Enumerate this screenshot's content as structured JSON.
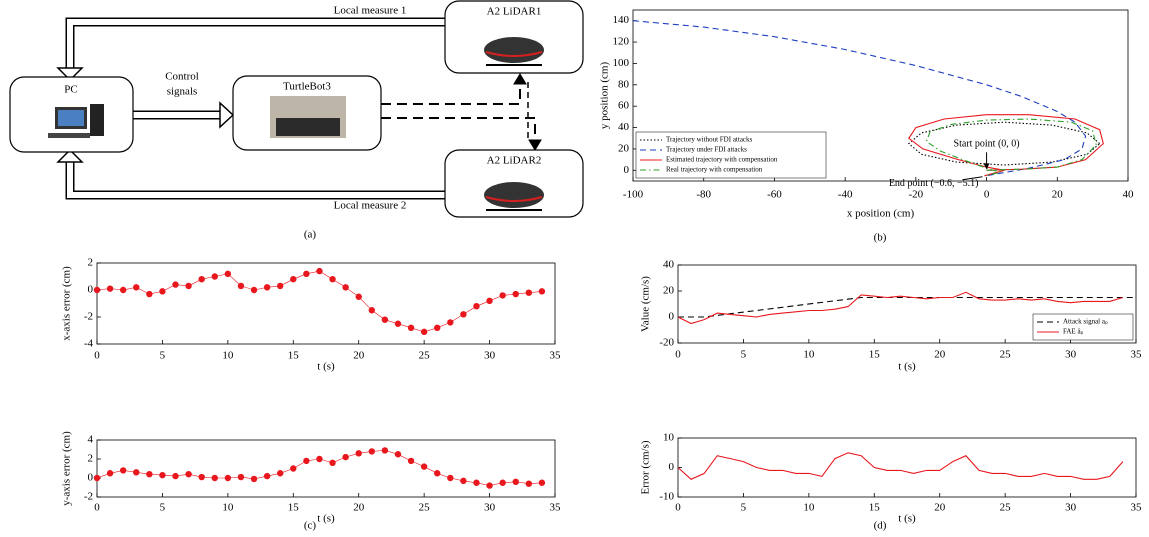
{
  "diagram": {
    "nodes": [
      {
        "label": "PC"
      },
      {
        "label": "TurtleBot3"
      },
      {
        "label": "A2 LiDAR1"
      },
      {
        "label": "A2 LiDAR2"
      }
    ],
    "edges": [
      {
        "label": "Local measure 1"
      },
      {
        "label": "Local measure 2"
      },
      {
        "lines": [
          "Control",
          "signals"
        ]
      }
    ]
  },
  "captions": [
    "(a)",
    "(b)",
    "(c)",
    "(d)"
  ],
  "chart_data": [
    {
      "type": "line",
      "xlabel": "x position (cm)",
      "ylabel": "y position (cm)",
      "xlim": [
        -100,
        40
      ],
      "xticks": [
        -100,
        -80,
        -60,
        -40,
        -20,
        0,
        20,
        40
      ],
      "ylim": [
        -10,
        150
      ],
      "yticks": [
        0,
        20,
        40,
        60,
        80,
        100,
        120,
        140
      ],
      "legend": "lower left",
      "series": [
        {
          "name": "Trajectory without FDI attacks",
          "color": "#000000",
          "dash": "dotted",
          "x": [
            32,
            28.4,
            18.5,
            5,
            -8.5,
            -18.4,
            -22,
            -18.4,
            -8.5,
            5,
            18.5,
            28.4,
            32
          ],
          "values": [
            25,
            35,
            42.3,
            45,
            42.3,
            35,
            25,
            15,
            7.7,
            5,
            7.7,
            15,
            25
          ]
        },
        {
          "name": "Trajectory under FDI attacks",
          "color": "#1f3fbf",
          "dash": "dashed",
          "x": [
            -100,
            -80,
            -60,
            -40,
            -20,
            0,
            10,
            20,
            25,
            28,
            27,
            22,
            12,
            0
          ],
          "values": [
            140,
            134,
            125,
            113,
            98,
            80,
            69,
            55,
            45,
            32,
            20,
            10,
            2,
            -5
          ]
        },
        {
          "name": "Estimated trajectory with compensation",
          "color": "#e8171d",
          "dash": "solid",
          "x": [
            0,
            10,
            20,
            28,
            33,
            32,
            25,
            12,
            0,
            -12,
            -20,
            -22,
            -18,
            -8,
            0,
            5,
            -0.6
          ],
          "values": [
            0,
            1,
            3,
            10,
            25,
            38,
            48,
            52,
            52,
            48,
            40,
            30,
            20,
            10,
            3,
            0,
            -5.1
          ]
        },
        {
          "name": "Real trajectory with compensation",
          "color": "#2ca02c",
          "dash": "dashdot",
          "x": [
            0,
            10,
            20,
            27,
            31,
            30,
            24,
            12,
            0,
            -10,
            -16,
            -17,
            -13,
            -6,
            0,
            4,
            -0.6
          ],
          "values": [
            0,
            1,
            3,
            10,
            24,
            37,
            45,
            48,
            47,
            43,
            36,
            27,
            18,
            9,
            2,
            -2,
            -5.1
          ]
        }
      ],
      "annotations": [
        {
          "text": "Start point (0, 0)",
          "x": 0,
          "y": 0
        },
        {
          "text": "End point (−0.6, −5.1)",
          "x": -0.6,
          "y": -5.1
        }
      ]
    },
    {
      "type": "scatter",
      "xlabel": "t (s)",
      "ylabel": "x-axis error (cm)",
      "xlim": [
        0,
        35
      ],
      "xticks": [
        0,
        5,
        10,
        15,
        20,
        25,
        30,
        35
      ],
      "ylim": [
        -4,
        2
      ],
      "yticks": [
        -4,
        -2,
        0,
        2
      ],
      "series": [
        {
          "color": "#e8171d",
          "x": [
            0,
            1,
            2,
            3,
            4,
            5,
            6,
            7,
            8,
            9,
            10,
            11,
            12,
            13,
            14,
            15,
            16,
            17,
            18,
            19,
            20,
            21,
            22,
            23,
            24,
            25,
            26,
            27,
            28,
            29,
            30,
            31,
            32,
            33,
            34
          ],
          "values": [
            0,
            0.1,
            0,
            0.2,
            -0.3,
            -0.1,
            0.4,
            0.3,
            0.8,
            1.0,
            1.2,
            0.3,
            0,
            0.2,
            0.3,
            0.8,
            1.2,
            1.4,
            0.8,
            0.2,
            -0.5,
            -1.5,
            -2.2,
            -2.5,
            -2.8,
            -3.1,
            -2.8,
            -2.4,
            -1.8,
            -1.2,
            -0.8,
            -0.4,
            -0.3,
            -0.2,
            -0.1
          ]
        }
      ]
    },
    {
      "type": "scatter",
      "xlabel": "t (s)",
      "ylabel": "y-axis error (cm)",
      "xlim": [
        0,
        35
      ],
      "xticks": [
        0,
        5,
        10,
        15,
        20,
        25,
        30,
        35
      ],
      "ylim": [
        -2,
        4
      ],
      "yticks": [
        -2,
        0,
        2,
        4
      ],
      "series": [
        {
          "color": "#e8171d",
          "x": [
            0,
            1,
            2,
            3,
            4,
            5,
            6,
            7,
            8,
            9,
            10,
            11,
            12,
            13,
            14,
            15,
            16,
            17,
            18,
            19,
            20,
            21,
            22,
            23,
            24,
            25,
            26,
            27,
            28,
            29,
            30,
            31,
            32,
            33,
            34
          ],
          "values": [
            0,
            0.5,
            0.8,
            0.6,
            0.4,
            0.3,
            0.2,
            0.4,
            0.1,
            0,
            0,
            0.1,
            -0.1,
            0.2,
            0.5,
            1.0,
            1.8,
            2.0,
            1.6,
            2.2,
            2.6,
            2.8,
            2.9,
            2.5,
            1.8,
            1.2,
            0.5,
            0,
            -0.3,
            -0.5,
            -0.8,
            -0.5,
            -0.4,
            -0.6,
            -0.5
          ]
        }
      ]
    },
    {
      "type": "line",
      "xlabel": "t (s)",
      "ylabel": "Value (cm/s)",
      "xlim": [
        0,
        35
      ],
      "xticks": [
        0,
        5,
        10,
        15,
        20,
        25,
        30,
        35
      ],
      "ylim": [
        -20,
        40
      ],
      "yticks": [
        -20,
        0,
        20,
        40
      ],
      "legend": "lower right",
      "series": [
        {
          "name": "Attack signal aₚ",
          "color": "#000000",
          "dash": "dashed",
          "x": [
            0,
            2,
            14,
            35
          ],
          "values": [
            0,
            0,
            15,
            15
          ]
        },
        {
          "name": "FAE âₚ",
          "color": "#e8171d",
          "dash": "solid",
          "x": [
            0,
            1,
            2,
            3,
            4,
            5,
            6,
            7,
            8,
            9,
            10,
            11,
            12,
            13,
            14,
            15,
            16,
            17,
            18,
            19,
            20,
            21,
            22,
            23,
            24,
            25,
            26,
            27,
            28,
            29,
            30,
            31,
            32,
            33,
            34
          ],
          "values": [
            0,
            -5,
            -2,
            3,
            2,
            1,
            0,
            2,
            3,
            4,
            5,
            5,
            6,
            8,
            17,
            16,
            15,
            16,
            15,
            14,
            15,
            15,
            19,
            14,
            13,
            13,
            14,
            13,
            14,
            12,
            11,
            12,
            12,
            12,
            15
          ]
        }
      ]
    },
    {
      "type": "line",
      "xlabel": "t (s)",
      "ylabel": "Error (cm/s)",
      "xlim": [
        0,
        35
      ],
      "xticks": [
        0,
        5,
        10,
        15,
        20,
        25,
        30,
        35
      ],
      "ylim": [
        -10,
        10
      ],
      "yticks": [
        -10,
        0,
        10
      ],
      "series": [
        {
          "color": "#e8171d",
          "dash": "solid",
          "x": [
            0,
            1,
            2,
            3,
            4,
            5,
            6,
            7,
            8,
            9,
            10,
            11,
            12,
            13,
            14,
            15,
            16,
            17,
            18,
            19,
            20,
            21,
            22,
            23,
            24,
            25,
            26,
            27,
            28,
            29,
            30,
            31,
            32,
            33,
            34
          ],
          "values": [
            0,
            -4,
            -2,
            4,
            3,
            2,
            0,
            -1,
            -1,
            -2,
            -2,
            -3,
            3,
            5,
            4,
            0,
            -1,
            -1,
            -2,
            -1,
            -1,
            2,
            4,
            -1,
            -2,
            -2,
            -3,
            -3,
            -2,
            -3,
            -3,
            -4,
            -4,
            -3,
            2
          ]
        }
      ]
    }
  ]
}
